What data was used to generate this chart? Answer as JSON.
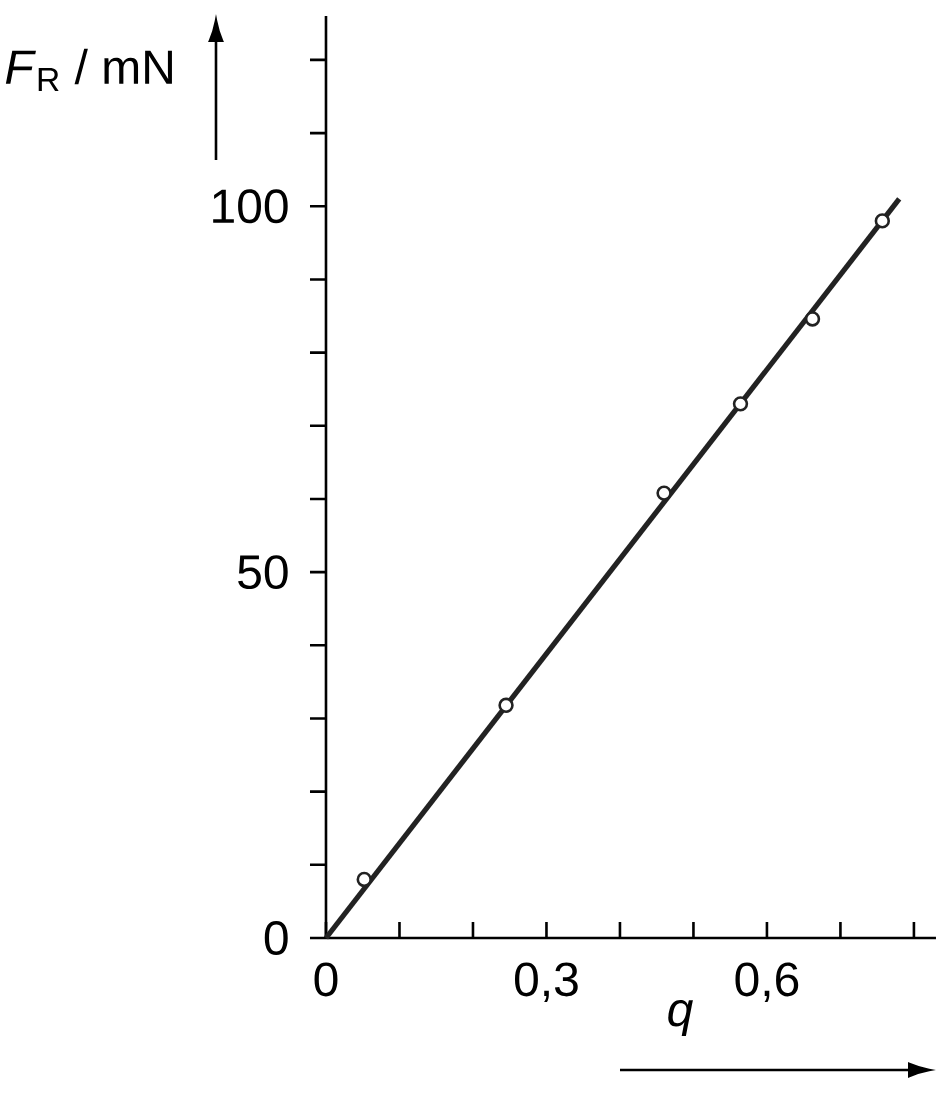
{
  "chart_data": {
    "type": "scatter",
    "xlabel": "*q*",
    "ylabel": "*F*$_{R}$ / mN",
    "xlim": [
      0,
      0.83
    ],
    "ylim": [
      0,
      126
    ],
    "xticks": [
      0,
      {
        "value": 0.1,
        "label": null
      },
      {
        "value": 0.2,
        "label": null
      },
      {
        "value": 0.3,
        "label": "0,3"
      },
      {
        "value": 0.4,
        "label": null
      },
      {
        "value": 0.5,
        "label": null
      },
      {
        "value": 0.6,
        "label": "0,6"
      },
      {
        "value": 0.7,
        "label": null
      },
      {
        "value": 0.8,
        "label": null
      }
    ],
    "yticks": [
      0,
      {
        "value": 10,
        "label": null
      },
      {
        "value": 20,
        "label": null
      },
      {
        "value": 30,
        "label": null
      },
      {
        "value": 40,
        "label": null
      },
      50,
      {
        "value": 60,
        "label": null
      },
      {
        "value": 70,
        "label": null
      },
      {
        "value": 80,
        "label": null
      },
      {
        "value": 90,
        "label": null
      },
      100,
      {
        "value": 110,
        "label": null
      },
      {
        "value": 120,
        "label": null
      }
    ],
    "series": [
      {
        "type": "line",
        "color": "#222222",
        "marker": "none",
        "line_style": "solid",
        "x": [
          0,
          0.78
        ],
        "values": [
          0,
          101
        ]
      },
      {
        "color": "#222222",
        "marker": "circle",
        "x": [
          0.052,
          0.245,
          0.46,
          0.564,
          0.662,
          0.757
        ],
        "values": [
          8,
          31.8,
          60.8,
          73,
          84.6,
          98
        ]
      }
    ]
  }
}
